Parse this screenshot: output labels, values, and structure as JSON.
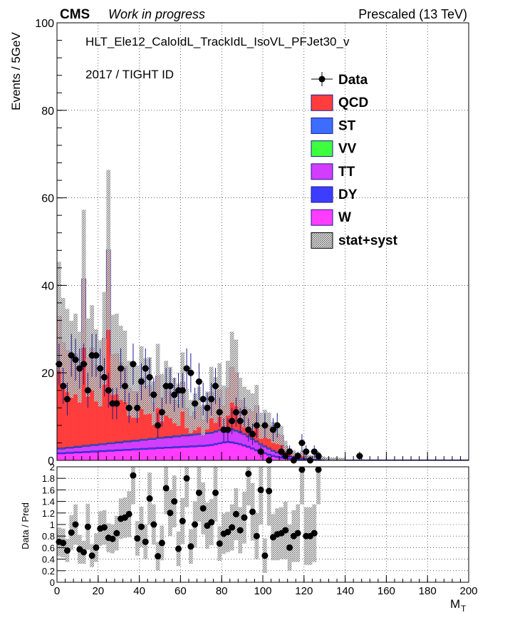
{
  "header": {
    "experiment": "CMS",
    "status": "Work in progress",
    "energy": "Prescaled (13 TeV)"
  },
  "annotations": {
    "trigger": "HLT_Ele12_CaloIdL_TrackIdL_IsoVL_PFJet30_v",
    "selection": "2017 / TIGHT ID"
  },
  "colors": {
    "QCD": "#ff3d3d",
    "ST": "#3d6dff",
    "VV": "#3dff3d",
    "TT": "#d23dff",
    "DY": "#3d3dff",
    "W": "#ff3dff",
    "data": "#000000",
    "outline": "#1a1a8c"
  },
  "chart_data": [
    {
      "type": "bar",
      "panel": "main",
      "stacked": true,
      "xlabel": "M_T",
      "ylabel": "Events / 5GeV",
      "xlim": [
        0,
        200
      ],
      "ylim": [
        0,
        100
      ],
      "x_ticks": [
        0,
        20,
        40,
        60,
        80,
        100,
        120,
        140,
        160,
        180,
        200
      ],
      "y_ticks": [
        0,
        20,
        40,
        60,
        80,
        100
      ],
      "y_ticks_labels": [
        "0",
        "20",
        "40",
        "60",
        "80",
        "100"
      ],
      "bin_width": 2,
      "grid": true,
      "legend_position": "top-right",
      "legend": [
        "Data",
        "QCD",
        "ST",
        "VV",
        "TT",
        "DY",
        "W",
        "stat+syst"
      ],
      "bin_edges_start": 0,
      "series": [
        {
          "name": "W",
          "values": [
            1.5,
            1.5,
            1.6,
            1.6,
            1.7,
            1.7,
            1.8,
            1.8,
            1.9,
            1.9,
            2.0,
            2.0,
            2.1,
            2.1,
            2.2,
            2.2,
            2.3,
            2.3,
            2.4,
            2.4,
            2.5,
            2.5,
            2.6,
            2.6,
            2.7,
            2.7,
            2.8,
            2.8,
            2.9,
            2.9,
            3.0,
            3.0,
            3.1,
            3.1,
            3.2,
            3.2,
            3.3,
            3.4,
            3.6,
            3.8,
            4.0,
            4.1,
            4.0,
            3.8,
            3.6,
            3.3,
            3.0,
            2.6,
            2.2,
            1.8,
            1.5,
            1.2,
            0.9,
            0.7,
            0.5,
            0.4,
            0.3,
            0.25,
            0.2,
            0.15,
            0.1,
            0.1,
            0.08,
            0.06,
            0.05,
            0.04,
            0.03,
            0.02,
            0.02,
            0.01
          ]
        },
        {
          "name": "DY",
          "values": [
            0.3,
            0.3,
            0.3,
            0.3,
            0.3,
            0.3,
            0.3,
            0.3,
            0.3,
            0.3,
            0.3,
            0.3,
            0.3,
            0.3,
            0.3,
            0.3,
            0.3,
            0.3,
            0.3,
            0.3,
            0.3,
            0.3,
            0.3,
            0.3,
            0.3,
            0.3,
            0.3,
            0.3,
            0.3,
            0.3,
            0.3,
            0.3,
            0.3,
            0.3,
            0.3,
            0.3,
            0.3,
            0.3,
            0.3,
            0.3,
            0.3,
            0.3,
            0.3,
            0.3,
            0.3,
            0.3,
            0.3,
            0.3,
            0.3,
            0.3,
            0.3,
            0.3,
            0.3,
            0.3,
            0.3,
            0.2,
            0.2,
            0.2,
            0.2,
            0.1,
            0.1,
            0.1,
            0.1,
            0.1,
            0.1,
            0.05,
            0.05,
            0.05,
            0.05,
            0.05
          ]
        },
        {
          "name": "TT",
          "values": [
            0.8,
            0.8,
            0.9,
            0.9,
            1.0,
            1.0,
            1.1,
            1.1,
            1.2,
            1.2,
            1.3,
            1.3,
            1.4,
            1.4,
            1.5,
            1.5,
            1.6,
            1.6,
            1.7,
            1.7,
            1.8,
            1.8,
            1.9,
            1.9,
            2.0,
            2.0,
            2.1,
            2.1,
            2.2,
            2.2,
            2.3,
            2.3,
            2.3,
            2.4,
            2.4,
            2.4,
            2.5,
            2.5,
            2.6,
            2.7,
            2.8,
            2.8,
            2.7,
            2.6,
            2.5,
            2.3,
            2.1,
            1.9,
            1.7,
            1.5,
            1.3,
            1.1,
            0.9,
            0.7,
            0.6,
            0.5,
            0.4,
            0.3,
            0.25,
            0.2,
            0.15,
            0.12,
            0.1,
            0.08,
            0.06,
            0.05,
            0.04,
            0.03,
            0.02,
            0.02
          ]
        },
        {
          "name": "VV",
          "values": [
            0.1,
            0.1,
            0.1,
            0.1,
            0.1,
            0.1,
            0.1,
            0.1,
            0.1,
            0.1,
            0.1,
            0.1,
            0.1,
            0.1,
            0.1,
            0.1,
            0.1,
            0.1,
            0.1,
            0.1,
            0.1,
            0.1,
            0.1,
            0.1,
            0.1,
            0.1,
            0.1,
            0.1,
            0.1,
            0.1,
            0.1,
            0.1,
            0.1,
            0.1,
            0.1,
            0.1,
            0.1,
            0.1,
            0.1,
            0.1,
            0.1,
            0.1,
            0.1,
            0.1,
            0.1,
            0.1,
            0.1,
            0.1,
            0.1,
            0.1,
            0.1,
            0.1,
            0.1,
            0.1,
            0.1,
            0.05,
            0.05,
            0.05,
            0.05,
            0.05,
            0.05,
            0.05,
            0.05,
            0.05,
            0.05,
            0.02,
            0.02,
            0.02,
            0.02,
            0.02
          ]
        },
        {
          "name": "ST",
          "values": [
            0.2,
            0.2,
            0.2,
            0.2,
            0.2,
            0.2,
            0.2,
            0.2,
            0.2,
            0.2,
            0.2,
            0.2,
            0.2,
            0.2,
            0.2,
            0.2,
            0.2,
            0.2,
            0.2,
            0.2,
            0.2,
            0.2,
            0.2,
            0.2,
            0.2,
            0.2,
            0.2,
            0.2,
            0.2,
            0.2,
            0.2,
            0.2,
            0.2,
            0.2,
            0.2,
            0.2,
            0.2,
            0.2,
            0.2,
            0.2,
            0.2,
            0.2,
            0.2,
            0.2,
            0.2,
            0.2,
            0.2,
            0.2,
            0.2,
            0.2,
            0.2,
            0.2,
            0.2,
            0.2,
            0.2,
            0.1,
            0.1,
            0.1,
            0.1,
            0.1,
            0.1,
            0.1,
            0.1,
            0.1,
            0.1,
            0.05,
            0.05,
            0.05,
            0.05,
            0.05
          ]
        },
        {
          "name": "QCD",
          "values": [
            30,
            24,
            22,
            20,
            21,
            18,
            38,
            20,
            22,
            18,
            16,
            24,
            44,
            20,
            20,
            18,
            17,
            12,
            11,
            11,
            14,
            12,
            12,
            8,
            14,
            9,
            11,
            10,
            8,
            7,
            12,
            6,
            4,
            5,
            6,
            3,
            5,
            9,
            7,
            9,
            5,
            9,
            14,
            13,
            7,
            6,
            6,
            6,
            8,
            4,
            5,
            5,
            4,
            4,
            4,
            2,
            1,
            0.8,
            0.5,
            1,
            0.5,
            0.4,
            0.3,
            1,
            0.2,
            0.1,
            0.1,
            0.1,
            0.05,
            0.05
          ]
        }
      ],
      "data_points": {
        "name": "Data",
        "x": [
          1,
          3,
          5,
          7,
          9,
          11,
          13,
          15,
          17,
          19,
          21,
          23,
          25,
          27,
          29,
          31,
          33,
          35,
          37,
          39,
          41,
          43,
          45,
          47,
          49,
          51,
          53,
          55,
          57,
          59,
          61,
          63,
          65,
          67,
          69,
          71,
          73,
          75,
          77,
          79,
          81,
          83,
          85,
          87,
          89,
          91,
          93,
          95,
          97,
          99,
          101,
          103,
          105,
          107,
          109,
          111,
          113,
          115,
          117,
          119,
          121,
          123,
          125,
          127,
          147
        ],
        "y": [
          22,
          17,
          14,
          24,
          23,
          21,
          22,
          16,
          24,
          24,
          21,
          19,
          16,
          13,
          13,
          21,
          17,
          12,
          22,
          12,
          18,
          21,
          19,
          15,
          8,
          11,
          17,
          17,
          15,
          16,
          16,
          21,
          20,
          13,
          18,
          14,
          12,
          14,
          17,
          11,
          7,
          7,
          9,
          11,
          9,
          11,
          7,
          6,
          8,
          2,
          8,
          0,
          7,
          8,
          2,
          1,
          2,
          0,
          1,
          4,
          2,
          0,
          2,
          1,
          1
        ]
      }
    },
    {
      "type": "scatter",
      "panel": "ratio",
      "xlabel": "M_T",
      "ylabel": "Data / Pred",
      "xlim": [
        0,
        200
      ],
      "ylim": [
        0,
        2
      ],
      "y_ticks": [
        0,
        0.2,
        0.4,
        0.6,
        0.8,
        1,
        1.2,
        1.4,
        1.6,
        1.8,
        2
      ],
      "y_ticks_labels": [
        "0",
        "0.2",
        "0.4",
        "0.6",
        "0.8",
        "1",
        "1.2",
        "1.4",
        "1.6",
        "1.8",
        "2"
      ],
      "x": [
        1,
        3,
        5,
        7,
        9,
        11,
        13,
        15,
        17,
        19,
        21,
        23,
        25,
        27,
        29,
        31,
        33,
        35,
        37,
        39,
        41,
        43,
        45,
        47,
        49,
        51,
        53,
        55,
        57,
        59,
        61,
        63,
        65,
        67,
        69,
        71,
        73,
        75,
        77,
        79,
        81,
        83,
        85,
        87,
        89,
        91,
        93,
        95,
        97,
        99,
        101,
        103,
        105,
        107,
        109,
        111,
        113,
        115,
        117,
        119,
        121,
        123,
        125,
        127
      ],
      "y": [
        0.7,
        0.68,
        0.55,
        0.86,
        1.0,
        0.57,
        0.52,
        0.96,
        0.46,
        0.6,
        0.93,
        0.95,
        0.77,
        0.75,
        0.85,
        1.1,
        1.12,
        1.18,
        1.85,
        0.76,
        0.96,
        0.7,
        1.45,
        1.0,
        0.45,
        0.68,
        1.63,
        1.2,
        1.4,
        0.58,
        1.06,
        1.8,
        0.62,
        1.0,
        1.55,
        1.28,
        0.98,
        1.04,
        1.55,
        0.67,
        0.84,
        0.87,
        0.95,
        1.18,
        0.9,
        1.12,
        1.88,
        1.22,
        0.8,
        1.6,
        0.46,
        1.58,
        0.78,
        0.83,
        0.85,
        0.9,
        0.6,
        0.8,
        0.85,
        1.95,
        0.8,
        0.8,
        0.85,
        1.95
      ],
      "y_uncertainty": [
        0.25,
        0.25,
        0.2,
        0.3,
        0.35,
        0.25,
        0.2,
        0.4,
        0.2,
        0.25,
        0.3,
        0.3,
        0.25,
        0.25,
        0.3,
        0.35,
        0.35,
        0.4,
        0.5,
        0.3,
        0.35,
        0.3,
        0.45,
        0.35,
        0.25,
        0.3,
        0.45,
        0.4,
        0.45,
        0.3,
        0.4,
        0.5,
        0.3,
        0.4,
        0.5,
        0.45,
        0.4,
        0.4,
        0.5,
        0.3,
        0.35,
        0.35,
        0.4,
        0.45,
        0.4,
        0.45,
        0.55,
        0.5,
        0.4,
        0.6,
        0.3,
        0.6,
        0.4,
        0.45,
        0.45,
        0.5,
        0.4,
        0.45,
        0.5,
        0.6,
        0.5,
        0.5,
        0.5,
        0.6
      ]
    }
  ]
}
